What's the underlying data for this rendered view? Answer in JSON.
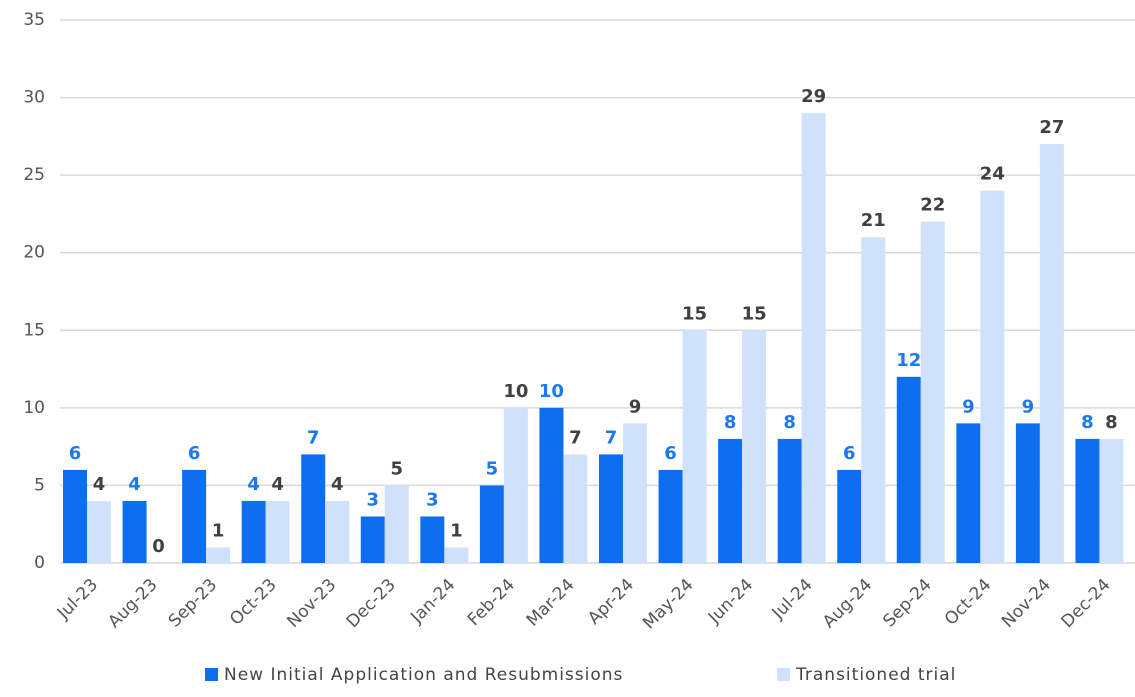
{
  "chart_data": {
    "type": "bar",
    "categories": [
      "Jul-23",
      "Aug-23",
      "Sep-23",
      "Oct-23",
      "Nov-23",
      "Dec-23",
      "Jan-24",
      "Feb-24",
      "Mar-24",
      "Apr-24",
      "May-24",
      "Jun-24",
      "Jul-24",
      "Aug-24",
      "Sep-24",
      "Oct-24",
      "Nov-24",
      "Dec-24"
    ],
    "series": [
      {
        "name": "New Initial Application and Resubmissions",
        "color": "#0d6ef2",
        "label_color": "#1a78f0",
        "values": [
          6,
          4,
          6,
          4,
          7,
          3,
          3,
          5,
          10,
          7,
          6,
          8,
          8,
          6,
          12,
          9,
          9,
          8
        ]
      },
      {
        "name": "Transitioned trial",
        "color": "#cfe1fd",
        "label_color": "#404040",
        "values": [
          4,
          0,
          1,
          4,
          4,
          5,
          1,
          10,
          7,
          9,
          15,
          15,
          29,
          21,
          22,
          24,
          27,
          8
        ]
      }
    ],
    "ylim": [
      0,
      35
    ],
    "yticks": [
      0,
      5,
      10,
      15,
      20,
      25,
      30,
      35
    ],
    "grid": true,
    "legend": "bottom"
  }
}
